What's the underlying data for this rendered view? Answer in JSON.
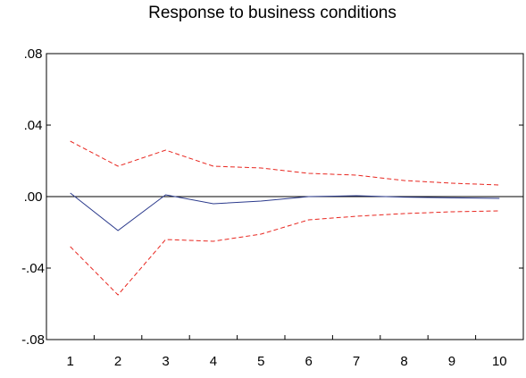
{
  "chart_data": {
    "type": "line",
    "title": "Response to business conditions",
    "xlabel": "",
    "ylabel": "",
    "x": [
      1,
      2,
      3,
      4,
      5,
      6,
      7,
      8,
      9,
      10
    ],
    "x_tick_labels": [
      "1",
      "2",
      "3",
      "4",
      "5",
      "6",
      "7",
      "8",
      "9",
      "10"
    ],
    "xlim": [
      0.5,
      10.5
    ],
    "ylim": [
      -0.08,
      0.08
    ],
    "y_ticks": [
      0.08,
      0.04,
      0.0,
      -0.04,
      -0.08
    ],
    "y_tick_labels": [
      ".08",
      ".04",
      ".00",
      "-.04",
      "-.08"
    ],
    "grid": false,
    "zero_line": true,
    "series": [
      {
        "role": "response",
        "style": "solid",
        "color": "#2b3a8c",
        "values": [
          0.002,
          -0.019,
          0.001,
          -0.004,
          -0.0025,
          0.0,
          0.0005,
          -0.0003,
          -0.0007,
          -0.001
        ]
      },
      {
        "role": "upper-band",
        "style": "dashed",
        "color": "#e8261f",
        "values": [
          0.031,
          0.017,
          0.026,
          0.017,
          0.016,
          0.013,
          0.012,
          0.009,
          0.0075,
          0.0065
        ]
      },
      {
        "role": "lower-band",
        "style": "dashed",
        "color": "#e8261f",
        "values": [
          -0.028,
          -0.055,
          -0.024,
          -0.025,
          -0.021,
          -0.013,
          -0.011,
          -0.0095,
          -0.0085,
          -0.008
        ]
      }
    ]
  }
}
